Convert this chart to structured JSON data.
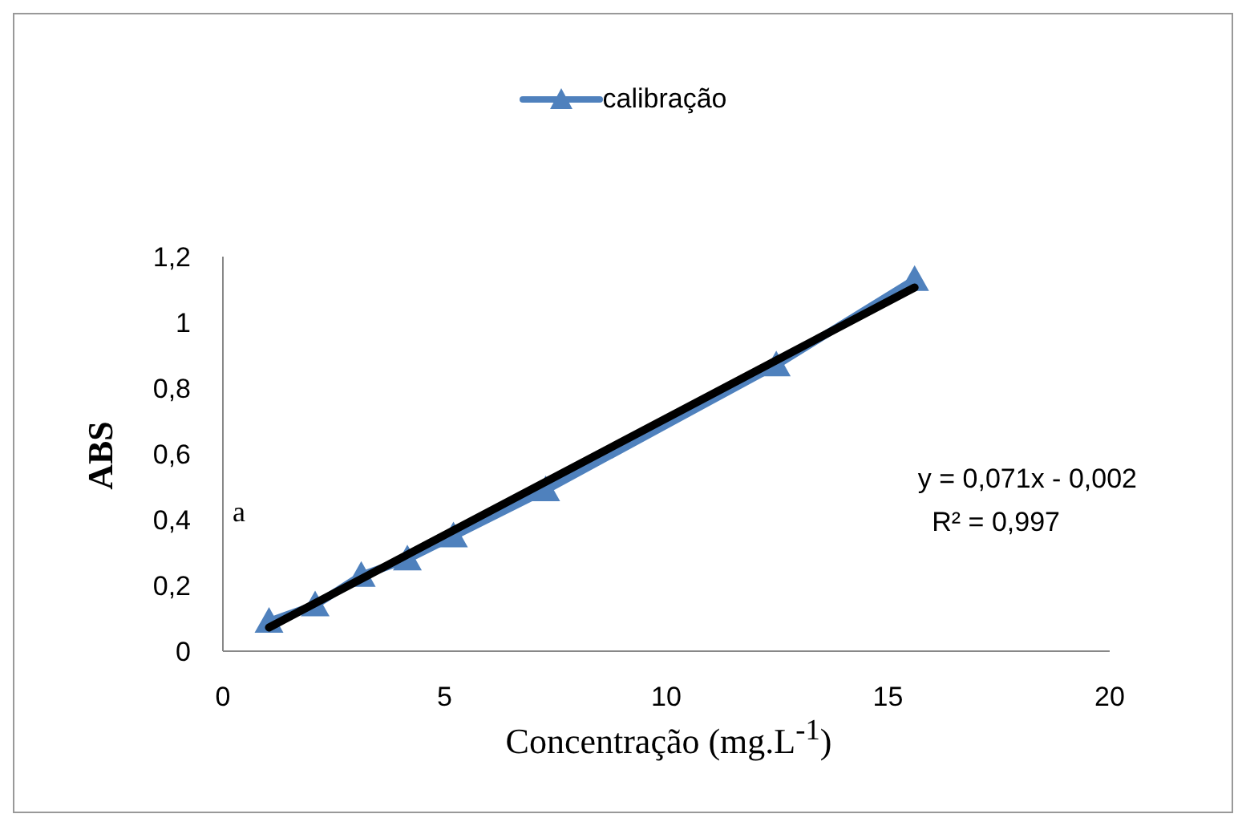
{
  "chart_data": {
    "type": "line",
    "xlabel": "Concentração (mg.L$^{-1}$)",
    "ylabel": "ABS",
    "series": [
      {
        "name": "calibração",
        "color": "#4f81bd",
        "marker": "triangle",
        "x": [
          1.04,
          2.08,
          3.12,
          4.16,
          5.2,
          7.28,
          12.48,
          15.6
        ],
        "values": [
          0.09,
          0.14,
          0.23,
          0.28,
          0.35,
          0.49,
          0.87,
          1.13
        ]
      },
      {
        "color": "#000000",
        "marker": "none",
        "x": [
          1.04,
          15.6
        ],
        "values": [
          0.072,
          1.106
        ]
      }
    ],
    "xlim": [
      0,
      20
    ],
    "xticks": [
      0,
      5,
      10,
      15,
      20
    ],
    "ylim": [
      0,
      1.2
    ],
    "yticks": [
      0,
      {
        "value": 0.2,
        "label": "0,2"
      },
      {
        "value": 0.4,
        "label": "0,4"
      },
      {
        "value": 0.6,
        "label": "0,6"
      },
      {
        "value": 0.8,
        "label": "0,8"
      },
      1,
      {
        "value": 1.2,
        "label": "1,2"
      }
    ],
    "grid": false,
    "legend": "top",
    "annotations": [
      "a",
      "y = 0,071x - 0,002",
      "R² = 0,997"
    ]
  }
}
